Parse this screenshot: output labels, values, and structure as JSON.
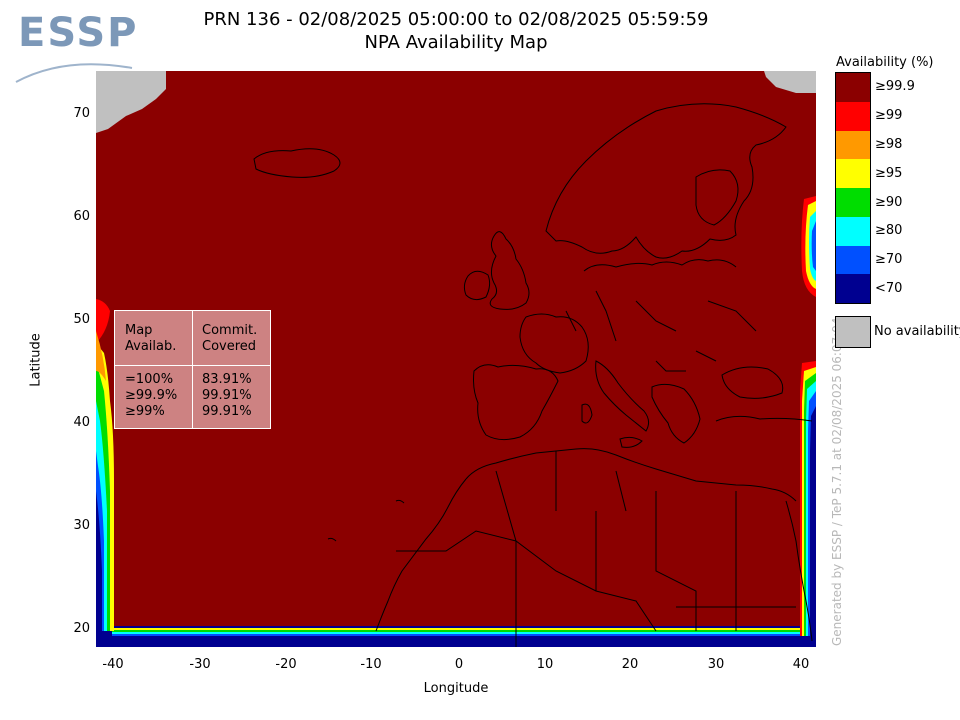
{
  "logo": {
    "text": "ESSP"
  },
  "title": {
    "line1": "PRN 136 - 02/08/2025 05:00:00 to 02/08/2025 05:59:59",
    "line2": "NPA Availability Map"
  },
  "axes": {
    "xlabel": "Longitude",
    "ylabel": "Latitude",
    "xticks": [
      "-40",
      "-30",
      "-20",
      "-10",
      "0",
      "10",
      "20",
      "30",
      "40"
    ],
    "yticks": [
      "70",
      "60",
      "50",
      "40",
      "30",
      "20"
    ]
  },
  "credit": "Generated by ESSP / TeP 5.7.1 at 02/08/2025 06:07:04",
  "legend": {
    "title": "Availability (%)",
    "items": [
      {
        "label": "≥99.9",
        "color": "#8b0000"
      },
      {
        "label": "≥99",
        "color": "#ff0000"
      },
      {
        "label": "≥98",
        "color": "#ff9900"
      },
      {
        "label": "≥95",
        "color": "#ffff00"
      },
      {
        "label": "≥90",
        "color": "#00dd00"
      },
      {
        "label": "≥80",
        "color": "#00ffff"
      },
      {
        "label": "≥70",
        "color": "#0050ff"
      },
      {
        "label": "<70",
        "color": "#000090"
      }
    ],
    "no_availability": {
      "label": "No availability",
      "color": "#c0c0c0"
    }
  },
  "stats": {
    "headers": {
      "col1": [
        "Map",
        "Availab."
      ],
      "col2": [
        "Commit.",
        "Covered"
      ]
    },
    "rows": [
      {
        "map": "=100%",
        "covered": "83.91%"
      },
      {
        "map": "≥99.9%",
        "covered": "99.91%"
      },
      {
        "map": "≥99%",
        "covered": "99.91%"
      }
    ]
  },
  "map": {
    "lon_range": [
      -42,
      42
    ],
    "lat_range": [
      18,
      74
    ],
    "background_color": "#8b0000"
  }
}
